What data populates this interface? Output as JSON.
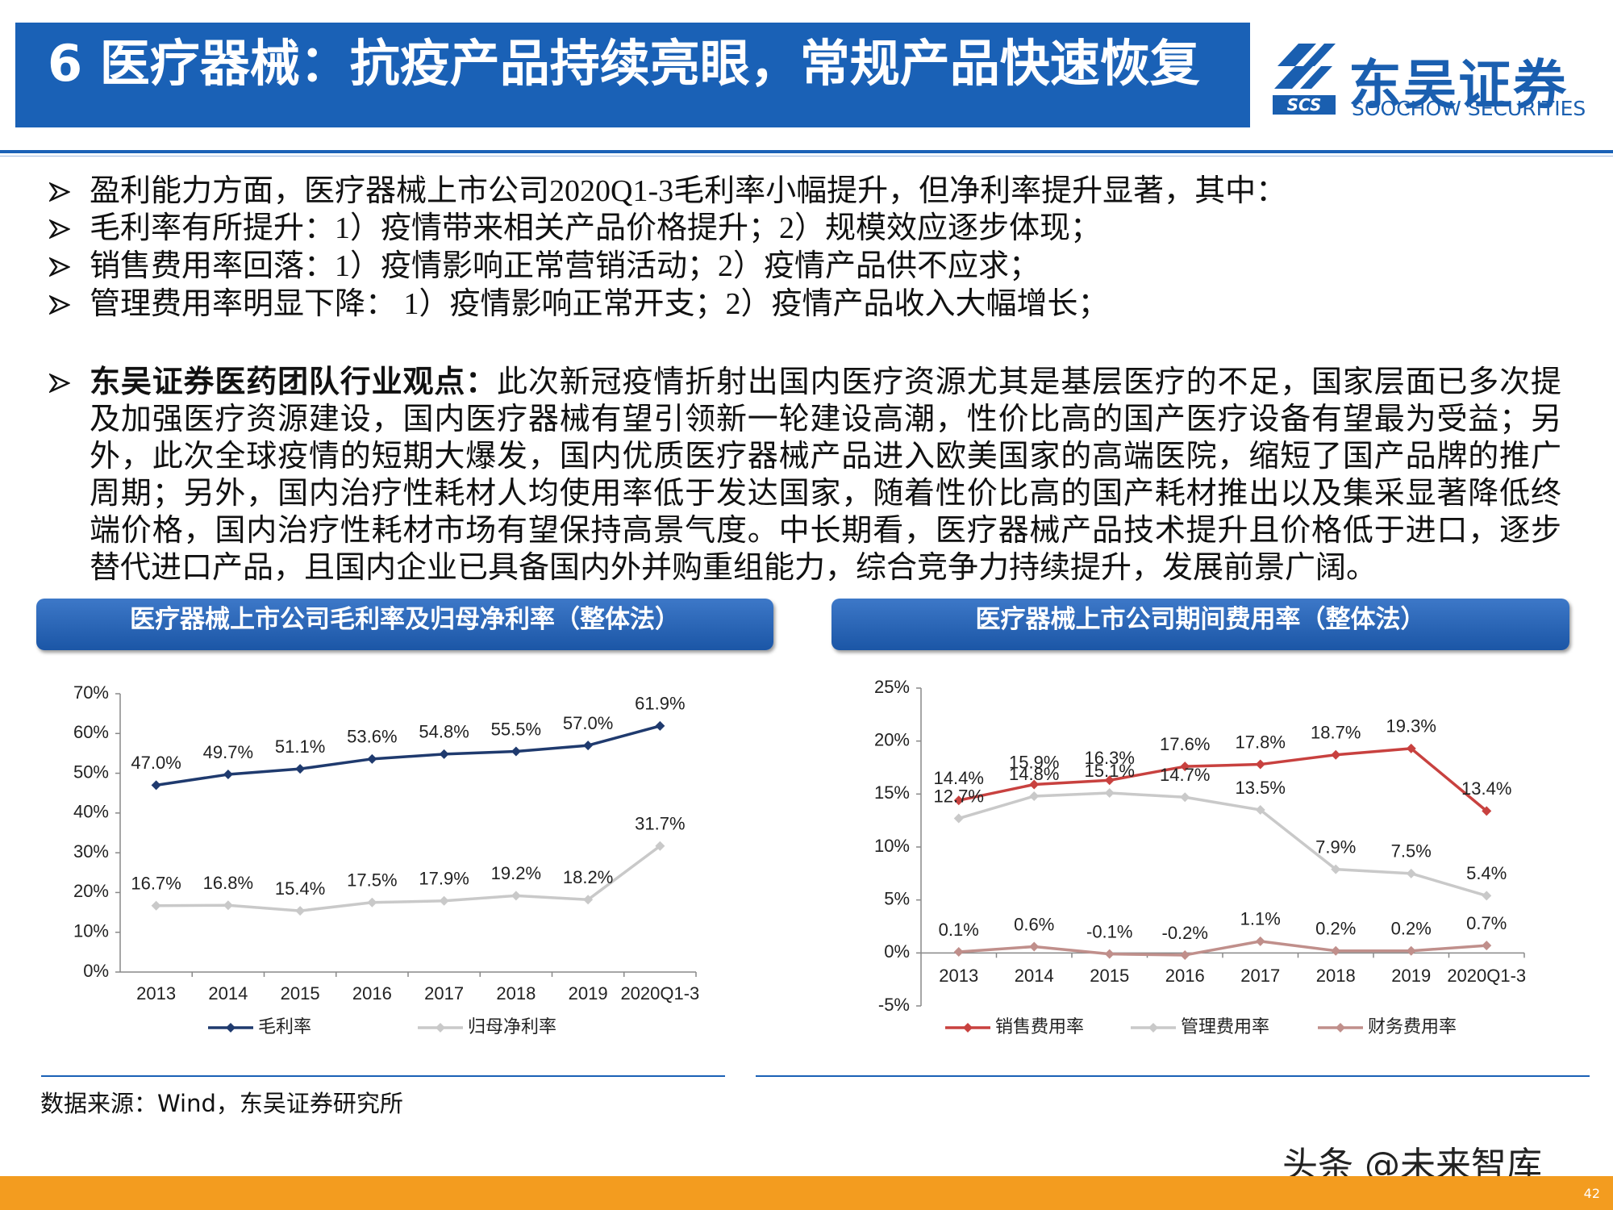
{
  "header": {
    "title": "6 医疗器械：抗疫产品持续亮眼，常规产品快速恢复",
    "logo_cn": "东吴证券",
    "logo_en": "SOOCHOW SECURITIES",
    "logo_abbr": "SCS"
  },
  "bullets": [
    "盈利能力方面，医疗器械上市公司2020Q1-3毛利率小幅提升，但净利率提升显著，其中：",
    "毛利率有所提升：1）疫情带来相关产品价格提升；2）规模效应逐步体现；",
    "销售费用率回落：1）疫情影响正常营销活动；2）疫情产品供不应求；",
    "管理费用率明显下降： 1）疫情影响正常开支；2）疫情产品收入大幅增长；"
  ],
  "viewpoint": {
    "label": "东吴证券医药团队行业观点：",
    "lines": [
      "此次新冠疫情折射出国内医疗资源尤其是基层医疗的不足，国家层面已多次提",
      "及加强医疗资源建设，国内医疗器械有望引领新一轮建设高潮，性价比高的国产医疗设备有望最为受益；另",
      "外，此次全球疫情的短期大爆发，国内优质医疗器械产品进入欧美国家的高端医院，缩短了国产品牌的推广",
      "周期；另外，国内治疗性耗材人均使用率低于发达国家，随着性价比高的国产耗材推出以及集采显著降低终",
      "端价格，国内治疗性耗材市场有望保持高景气度。中长期看，医疗器械产品技术提升且价格低于进口，逐步",
      "替代进口产品，且国内企业已具备国内外并购重组能力，综合竞争力持续提升，发展前景广阔。"
    ]
  },
  "chart_data": [
    {
      "type": "line",
      "title": "医疗器械上市公司毛利率及归母净利率（整体法）",
      "categories": [
        "2013",
        "2014",
        "2015",
        "2016",
        "2017",
        "2018",
        "2019",
        "2020Q1-3"
      ],
      "series": [
        {
          "name": "毛利率",
          "color": "#1f3a6e",
          "values": [
            47.0,
            49.7,
            51.1,
            53.6,
            54.8,
            55.5,
            57.0,
            61.9
          ],
          "value_labels": [
            "47.0%",
            "49.7%",
            "51.1%",
            "53.6%",
            "54.8%",
            "55.5%",
            "57.0%",
            "61.9%"
          ]
        },
        {
          "name": "归母净利率",
          "color": "#c9c9c9",
          "values": [
            16.7,
            16.8,
            15.4,
            17.5,
            17.9,
            19.2,
            18.2,
            31.7
          ],
          "value_labels": [
            "16.7%",
            "16.8%",
            "15.4%",
            "17.5%",
            "17.9%",
            "19.2%",
            "18.2%",
            "31.7%"
          ]
        }
      ],
      "ylim": [
        0,
        70
      ],
      "yticks": [
        {
          "value": 0,
          "label": "0%"
        },
        {
          "value": 10,
          "label": "10%"
        },
        {
          "value": 20,
          "label": "20%"
        },
        {
          "value": 30,
          "label": "30%"
        },
        {
          "value": 40,
          "label": "40%"
        },
        {
          "value": 50,
          "label": "50%"
        },
        {
          "value": 60,
          "label": "60%"
        },
        {
          "value": 70,
          "label": "70%"
        }
      ],
      "grid": false,
      "legend": "bottom"
    },
    {
      "type": "line",
      "title": "医疗器械上市公司期间费用率（整体法）",
      "categories": [
        "2013",
        "2014",
        "2015",
        "2016",
        "2017",
        "2018",
        "2019",
        "2020Q1-3"
      ],
      "series": [
        {
          "name": "销售费用率",
          "color": "#c8413f",
          "values": [
            14.4,
            15.9,
            16.3,
            17.6,
            17.8,
            18.7,
            19.3,
            13.4
          ],
          "value_labels": [
            "14.4%",
            "15.9%",
            "16.3%",
            "17.6%",
            "17.8%",
            "18.7%",
            "19.3%",
            "13.4%"
          ]
        },
        {
          "name": "管理费用率",
          "color": "#c9c9c9",
          "values": [
            12.7,
            14.8,
            15.1,
            14.7,
            13.5,
            7.9,
            7.5,
            5.4
          ],
          "value_labels": [
            "12.7%",
            "14.8%",
            "15.1%",
            "14.7%",
            "13.5%",
            "7.9%",
            "7.5%",
            "5.4%"
          ]
        },
        {
          "name": "财务费用率",
          "color": "#c08f8b",
          "values": [
            0.1,
            0.6,
            -0.1,
            -0.2,
            1.1,
            0.2,
            0.2,
            0.7
          ],
          "value_labels": [
            "0.1%",
            "0.6%",
            "-0.1%",
            "-0.2%",
            "1.1%",
            "0.2%",
            "0.2%",
            "0.7%"
          ]
        }
      ],
      "ylim": [
        -5,
        25
      ],
      "yticks": [
        {
          "value": -5,
          "label": "-5%"
        },
        {
          "value": 0,
          "label": "0%"
        },
        {
          "value": 5,
          "label": "5%"
        },
        {
          "value": 10,
          "label": "10%"
        },
        {
          "value": 15,
          "label": "15%"
        },
        {
          "value": 20,
          "label": "20%"
        },
        {
          "value": 25,
          "label": "25%"
        }
      ],
      "grid": false,
      "legend": "bottom"
    }
  ],
  "source": "数据来源：Wind，东吴证券研究所",
  "watermark": "头条 @未来智库",
  "page": 42
}
